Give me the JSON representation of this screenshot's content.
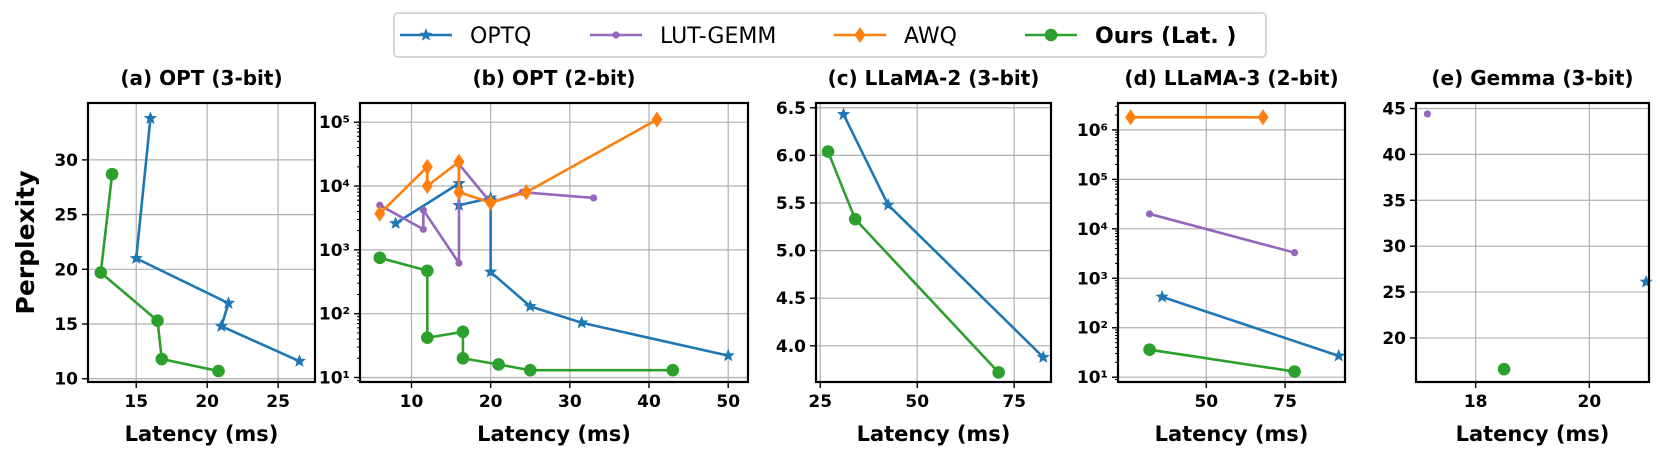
{
  "legend": {
    "placement": "top-center",
    "entries": [
      {
        "label": "OPTQ",
        "color": "#1f77b4",
        "marker": "star",
        "bold": false
      },
      {
        "label": "LUT-GEMM",
        "color": "#9467bd",
        "marker": "dot",
        "bold": false
      },
      {
        "label": "AWQ",
        "color": "#ff7f0e",
        "marker": "diamond",
        "bold": false
      },
      {
        "label": "Ours (Lat. )",
        "color": "#2ca02c",
        "marker": "circle",
        "bold": true
      }
    ]
  },
  "chart_data": [
    {
      "type": "line",
      "title": "(a) OPT (3-bit)",
      "xlabel": "Latency (ms)",
      "ylabel": "Perplexity",
      "yscale": "linear",
      "xlim": [
        11.6,
        27.6
      ],
      "ylim": [
        9.7,
        35.2
      ],
      "xticks": [
        15,
        20,
        25
      ],
      "yticks": [
        10,
        15,
        20,
        25,
        30
      ],
      "grid": true,
      "series": [
        {
          "name": "OPTQ",
          "x": [
            16.0,
            15.0,
            21.5,
            21.0,
            26.5
          ],
          "y": [
            33.8,
            21.0,
            16.9,
            14.8,
            11.6
          ]
        },
        {
          "name": "Ours (Lat. )",
          "x": [
            13.3,
            12.5,
            16.5,
            16.8,
            20.8
          ],
          "y": [
            28.7,
            19.7,
            15.3,
            11.8,
            10.7
          ]
        }
      ]
    },
    {
      "type": "line",
      "title": "(b) OPT (2-bit)",
      "xlabel": "Latency (ms)",
      "ylabel": "",
      "yscale": "log",
      "xlim": [
        3.5,
        52.5
      ],
      "ylim": [
        8.5,
        200000
      ],
      "xticks": [
        10,
        20,
        30,
        40,
        50
      ],
      "yticks": [
        10,
        100,
        1000,
        10000,
        100000
      ],
      "yticklabels": [
        "10¹",
        "10²",
        "10³",
        "10⁴",
        "10⁵"
      ],
      "grid": true,
      "series": [
        {
          "name": "OPTQ",
          "x": [
            8.0,
            16.0,
            16.0,
            20.0,
            20.0,
            20.0,
            25.0,
            31.5,
            50.0
          ],
          "y": [
            2600,
            11000,
            5000,
            6500,
            6000,
            450,
            130,
            72,
            22
          ]
        },
        {
          "name": "LUT-GEMM",
          "x": [
            6.0,
            11.5,
            11.5,
            16.0,
            16.0,
            20.0,
            24.0,
            33.0
          ],
          "y": [
            5000,
            2100,
            4200,
            620,
            22000,
            5500,
            8000,
            6500
          ]
        },
        {
          "name": "AWQ",
          "x": [
            6.0,
            12.0,
            12.0,
            16.0,
            16.0,
            20.0,
            24.5,
            41.0
          ],
          "y": [
            3700,
            20000,
            10000,
            24000,
            8000,
            5500,
            8000,
            110000
          ]
        },
        {
          "name": "Ours (Lat. )",
          "x": [
            6.0,
            12.0,
            12.0,
            16.5,
            16.5,
            21.0,
            25.0,
            43.0
          ],
          "y": [
            750,
            470,
            42,
            52,
            20,
            16,
            13,
            13
          ]
        }
      ]
    },
    {
      "type": "line",
      "title": "(c) LLaMA-2 (3-bit)",
      "xlabel": "Latency (ms)",
      "ylabel": "",
      "yscale": "linear",
      "xlim": [
        23.9,
        84.5
      ],
      "ylim": [
        3.62,
        6.55
      ],
      "xticks": [
        25,
        50,
        75
      ],
      "yticks": [
        4.0,
        4.5,
        5.0,
        5.5,
        6.0,
        6.5
      ],
      "yticklabels": [
        "4.0",
        "4.5",
        "5.0",
        "5.5",
        "6.0",
        "6.5"
      ],
      "grid": true,
      "series": [
        {
          "name": "OPTQ",
          "x": [
            31.0,
            42.5,
            82.5
          ],
          "y": [
            6.43,
            5.48,
            3.88
          ]
        },
        {
          "name": "Ours (Lat. )",
          "x": [
            27.0,
            34.0,
            71.0
          ],
          "y": [
            6.04,
            5.33,
            3.72
          ]
        }
      ]
    },
    {
      "type": "line",
      "title": "(d) LLaMA-3 (2-bit)",
      "xlabel": "Latency (ms)",
      "ylabel": "",
      "yscale": "log",
      "xlim": [
        22.0,
        94.0
      ],
      "ylim": [
        8.0,
        3500000
      ],
      "xticks": [
        50,
        75
      ],
      "yticks": [
        10,
        100,
        1000,
        10000,
        100000,
        1000000
      ],
      "yticklabels": [
        "10¹",
        "10²",
        "10³",
        "10⁴",
        "10⁵",
        "10⁶"
      ],
      "grid": true,
      "series": [
        {
          "name": "OPTQ",
          "x": [
            36.0,
            92.0
          ],
          "y": [
            420,
            27
          ]
        },
        {
          "name": "LUT-GEMM",
          "x": [
            32.0,
            78.0
          ],
          "y": [
            20000,
            3300
          ]
        },
        {
          "name": "AWQ",
          "x": [
            26.0,
            68.0
          ],
          "y": [
            1800000,
            1800000
          ]
        },
        {
          "name": "Ours (Lat. )",
          "x": [
            32.0,
            78.0
          ],
          "y": [
            36,
            13
          ]
        }
      ]
    },
    {
      "type": "scatter",
      "title": "(e) Gemma (3-bit)",
      "xlabel": "Latency (ms)",
      "ylabel": "",
      "yscale": "linear",
      "xlim": [
        16.95,
        21.05
      ],
      "ylim": [
        15.2,
        45.6
      ],
      "xticks": [
        18,
        20
      ],
      "yticks": [
        20,
        25,
        30,
        35,
        40,
        45
      ],
      "grid": true,
      "series": [
        {
          "name": "OPTQ",
          "x": [
            21.0
          ],
          "y": [
            26.1
          ]
        },
        {
          "name": "LUT-GEMM",
          "x": [
            17.15
          ],
          "y": [
            44.4
          ]
        },
        {
          "name": "Ours (Lat. )",
          "x": [
            18.5
          ],
          "y": [
            16.6
          ]
        }
      ]
    }
  ]
}
